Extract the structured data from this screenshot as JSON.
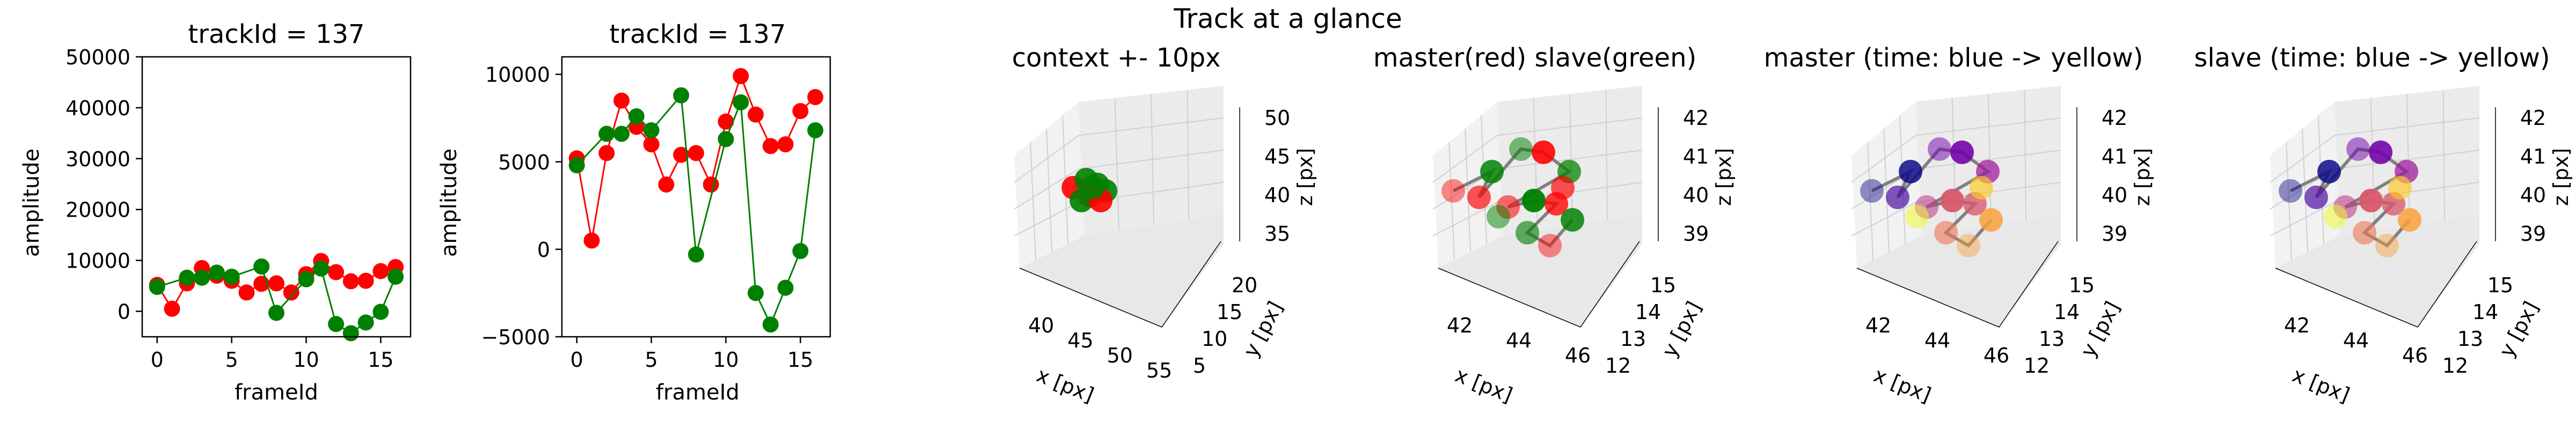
{
  "figure": {
    "title": "Track at a glance"
  },
  "colors": {
    "master": "#ff0000",
    "slave": "#008000",
    "trail": "#808080",
    "time_start": "#0d0887",
    "time_end": "#f0f921"
  },
  "chart_data": [
    {
      "type": "line",
      "title": "trackId = 137",
      "xlabel": "frameId",
      "ylabel": "amplitude",
      "xlim": [
        -1,
        17
      ],
      "ylim": [
        -5000,
        50000
      ],
      "xticks": [
        "0",
        "5",
        "10",
        "15"
      ],
      "yticks": [
        "0",
        "10000",
        "20000",
        "30000",
        "40000",
        "50000"
      ],
      "x": [
        0,
        1,
        2,
        3,
        4,
        5,
        6,
        7,
        8,
        9,
        10,
        11,
        12,
        13,
        14,
        15,
        16
      ],
      "series": [
        {
          "values": [
            5200,
            500,
            5500,
            8500,
            7000,
            6000,
            3700,
            5400,
            5500,
            3700,
            7300,
            9900,
            7700,
            5900,
            6000,
            7900,
            8700
          ]
        },
        {
          "values": [
            4800,
            null,
            6600,
            6600,
            7600,
            6800,
            null,
            8800,
            -300,
            null,
            6300,
            8400,
            -2500,
            -4300,
            -2200,
            -100,
            6800
          ]
        }
      ]
    },
    {
      "type": "line",
      "title": "trackId = 137",
      "xlabel": "frameId",
      "ylabel": "amplitude",
      "xlim": [
        -1,
        17
      ],
      "ylim": [
        -5000,
        11000
      ],
      "xticks": [
        "0",
        "5",
        "10",
        "15"
      ],
      "yticks": [
        "−5000",
        "0",
        "5000",
        "10000"
      ],
      "x": [
        0,
        1,
        2,
        3,
        4,
        5,
        6,
        7,
        8,
        9,
        10,
        11,
        12,
        13,
        14,
        15,
        16
      ],
      "series": [
        {
          "values": [
            5200,
            500,
            5500,
            8500,
            7000,
            6000,
            3700,
            5400,
            5500,
            3700,
            7300,
            9900,
            7700,
            5900,
            6000,
            7900,
            8700
          ]
        },
        {
          "values": [
            4800,
            null,
            6600,
            6600,
            7600,
            6800,
            null,
            8800,
            -300,
            null,
            6300,
            8400,
            -2500,
            -4300,
            -2200,
            -100,
            6800
          ]
        }
      ]
    },
    {
      "type": "scatter",
      "title": "context +- 10px",
      "xlabel": "x [px]",
      "ylabel": "y [px]",
      "zlabel": "z [px]",
      "xticks": [
        "40",
        "45",
        "50",
        "55"
      ],
      "yticks": [
        "5",
        "10",
        "15",
        "20"
      ],
      "zticks": [
        "35",
        "40",
        "45",
        "50"
      ]
    },
    {
      "type": "scatter",
      "title": "master(red) slave(green)",
      "xlabel": "x [px]",
      "ylabel": "y [px]",
      "zlabel": "z [px]",
      "xticks": [
        "42",
        "44",
        "46"
      ],
      "yticks": [
        "12",
        "13",
        "14",
        "15"
      ],
      "zticks": [
        "39",
        "40",
        "41",
        "42"
      ]
    },
    {
      "type": "scatter",
      "title": "master (time: blue -> yellow)",
      "xlabel": "x [px]",
      "ylabel": "y [px]",
      "zlabel": "z [px]",
      "xticks": [
        "42",
        "44",
        "46"
      ],
      "yticks": [
        "12",
        "13",
        "14",
        "15"
      ],
      "zticks": [
        "39",
        "40",
        "41",
        "42"
      ]
    },
    {
      "type": "scatter",
      "title": "slave (time: blue -> yellow)",
      "xlabel": "x [px]",
      "ylabel": "y [px]",
      "zlabel": "z [px]",
      "xticks": [
        "42",
        "44",
        "46"
      ],
      "yticks": [
        "12",
        "13",
        "14",
        "15"
      ],
      "zticks": [
        "39",
        "40",
        "41",
        "42"
      ]
    }
  ]
}
